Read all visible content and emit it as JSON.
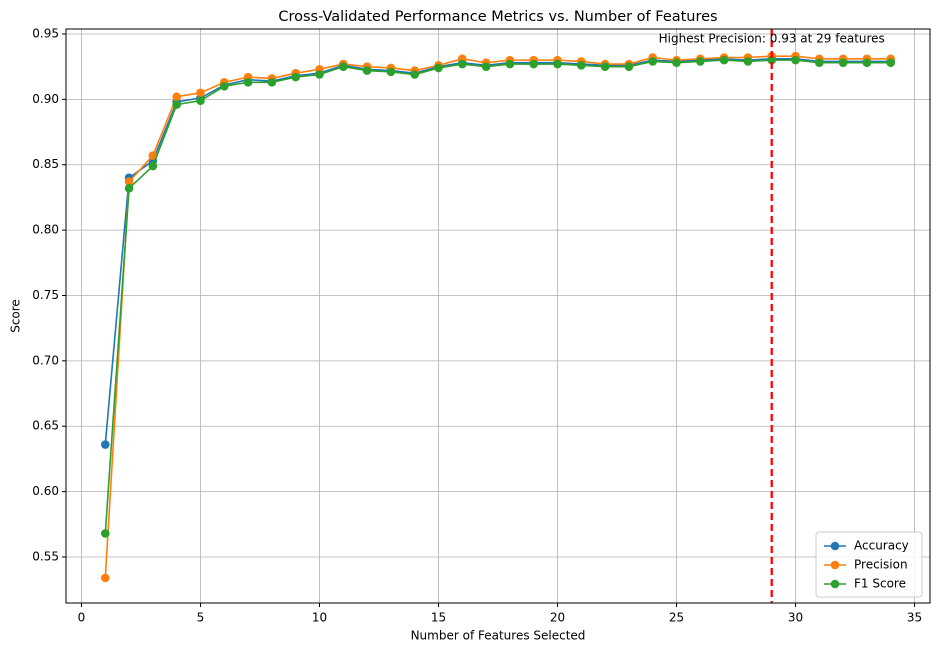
{
  "chart_data": {
    "type": "line",
    "title": "Cross-Validated Performance Metrics vs. Number of Features",
    "x_label": "Number of Features Selected",
    "y_label": "Score",
    "x": [
      1,
      2,
      3,
      4,
      5,
      6,
      7,
      8,
      9,
      10,
      11,
      12,
      13,
      14,
      15,
      16,
      17,
      18,
      19,
      20,
      21,
      22,
      23,
      24,
      25,
      26,
      27,
      28,
      29,
      30,
      31,
      32,
      33,
      34
    ],
    "series": [
      {
        "name": "Accuracy",
        "color": "#1f77b4",
        "values": [
          0.636,
          0.84,
          0.853,
          0.898,
          0.901,
          0.911,
          0.915,
          0.914,
          0.918,
          0.92,
          0.926,
          0.923,
          0.922,
          0.92,
          0.925,
          0.928,
          0.926,
          0.928,
          0.928,
          0.928,
          0.927,
          0.926,
          0.926,
          0.93,
          0.929,
          0.93,
          0.931,
          0.93,
          0.931,
          0.931,
          0.929,
          0.929,
          0.929,
          0.929
        ]
      },
      {
        "name": "Precision",
        "color": "#ff7f0e",
        "values": [
          0.534,
          0.837,
          0.857,
          0.902,
          0.905,
          0.913,
          0.917,
          0.916,
          0.92,
          0.923,
          0.927,
          0.925,
          0.924,
          0.922,
          0.926,
          0.931,
          0.928,
          0.93,
          0.93,
          0.93,
          0.929,
          0.927,
          0.927,
          0.932,
          0.93,
          0.931,
          0.932,
          0.932,
          0.933,
          0.933,
          0.931,
          0.931,
          0.931,
          0.931
        ]
      },
      {
        "name": "F1 Score",
        "color": "#2ca02c",
        "values": [
          0.568,
          0.832,
          0.849,
          0.896,
          0.899,
          0.91,
          0.913,
          0.913,
          0.917,
          0.919,
          0.925,
          0.922,
          0.921,
          0.919,
          0.924,
          0.927,
          0.925,
          0.927,
          0.927,
          0.927,
          0.926,
          0.925,
          0.925,
          0.929,
          0.928,
          0.929,
          0.93,
          0.929,
          0.93,
          0.93,
          0.928,
          0.928,
          0.928,
          0.928
        ]
      }
    ],
    "xlim": [
      -0.65,
      35.65
    ],
    "ylim": [
      0.5148,
      0.9538
    ],
    "xticks": [
      0,
      5,
      10,
      15,
      20,
      25,
      30,
      35
    ],
    "yticks": [
      0.55,
      {
        "value": 0.6,
        "label": "0.60"
      },
      0.65,
      {
        "value": 0.7,
        "label": "0.70"
      },
      0.75,
      {
        "value": 0.8,
        "label": "0.80"
      },
      0.85,
      {
        "value": 0.9,
        "label": "0.90"
      },
      0.95
    ],
    "grid": true,
    "legend": "lower right",
    "vline": {
      "x": 29,
      "color": "#ff0000"
    },
    "annotation": "Highest Precision: 0.93 at 29 features"
  }
}
